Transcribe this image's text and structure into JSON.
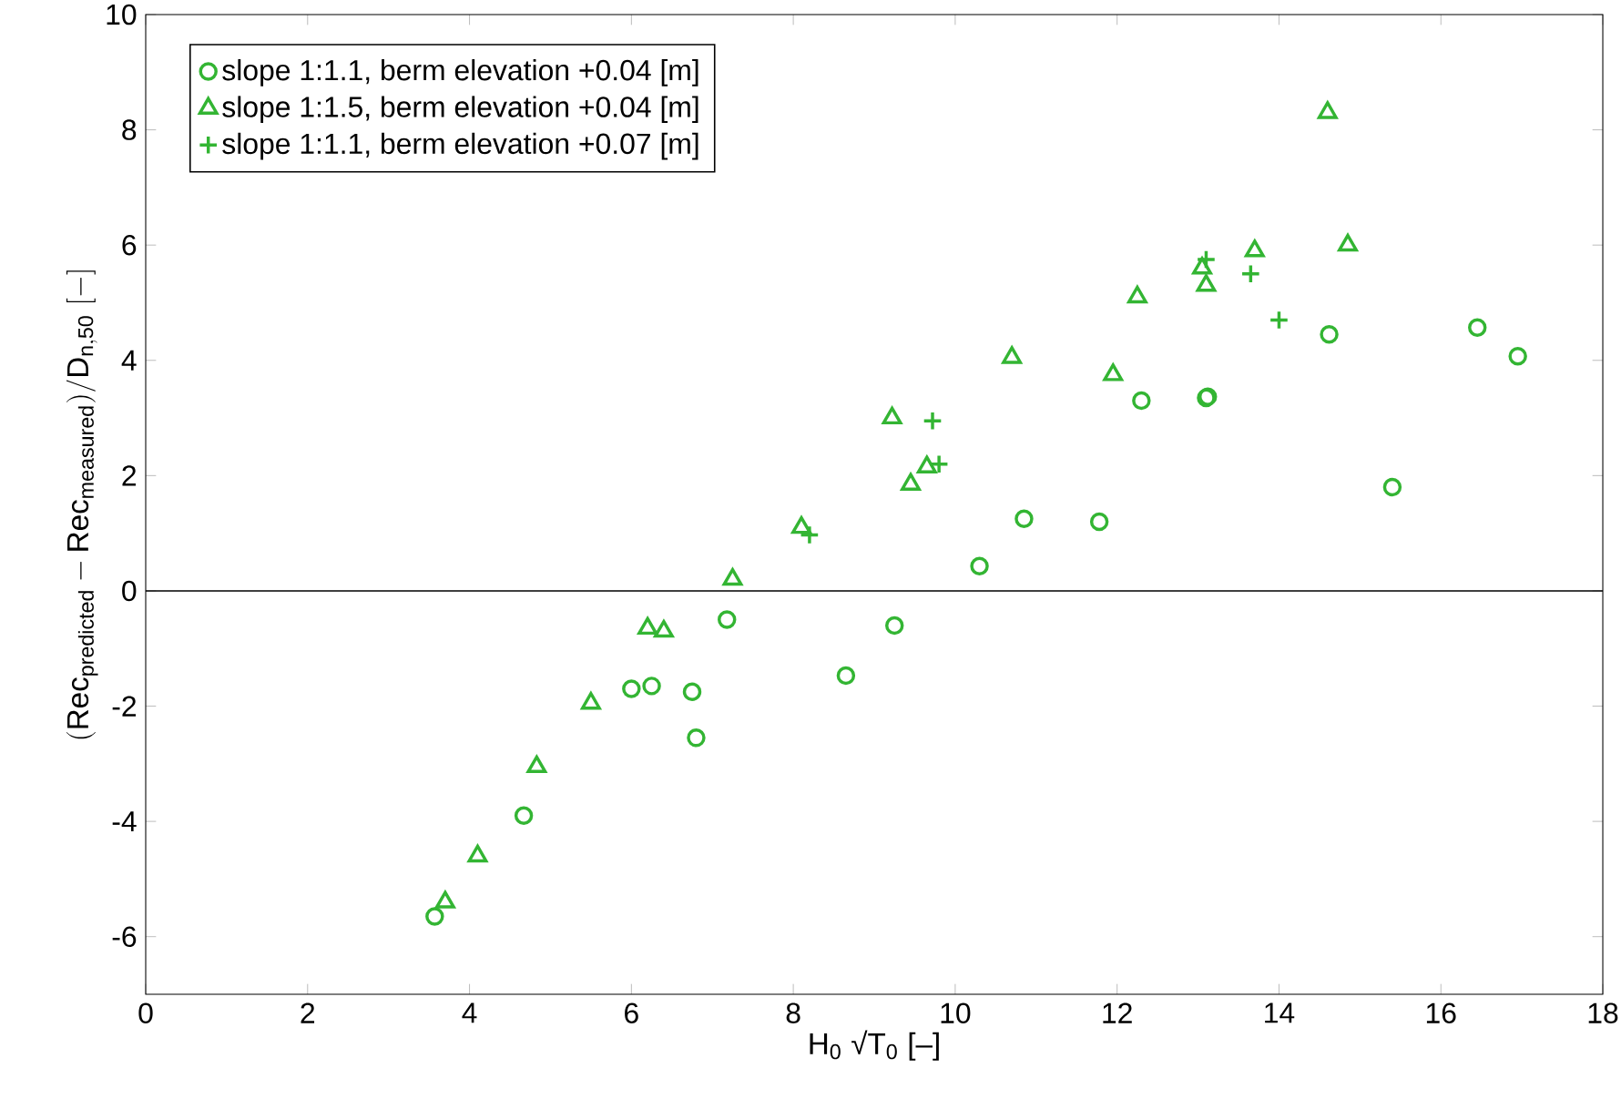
{
  "chart_data": {
    "type": "scatter",
    "xlabel": "H$_{0}$ √T$_{0}$ [–]",
    "ylabel": "(\\mathrm{Rec}_{\\mathrm{predicted}}-\\mathrm{Rec}_{\\mathrm{measured}})/\\mathrm{D}_{\\mathrm{n,50}}\\ [-]",
    "xlim": [
      0,
      18
    ],
    "ylim": [
      -7,
      10
    ],
    "xticks": [
      0,
      2,
      4,
      6,
      8,
      10,
      12,
      14,
      16,
      18
    ],
    "yticks": [
      -6,
      -4,
      -2,
      0,
      2,
      4,
      6,
      8,
      10
    ],
    "legend": "top left",
    "grid": false,
    "ref_lines": [
      {
        "axis": "y",
        "value": 0,
        "color": "#000000"
      }
    ],
    "series": [
      {
        "name": "slope 1:1.1, berm elevation +0.04 [m]",
        "color": "#33b533",
        "marker": "circle",
        "x": [
          3.57,
          4.67,
          6.0,
          6.25,
          6.75,
          6.8,
          7.18,
          8.65,
          9.25,
          10.3,
          10.85,
          11.78,
          12.3,
          13.1,
          13.12,
          14.62,
          15.4,
          16.45,
          16.95
        ],
        "values": [
          -5.65,
          -3.9,
          -1.7,
          -1.65,
          -1.75,
          -2.55,
          -0.5,
          -1.47,
          -0.6,
          0.43,
          1.25,
          1.2,
          3.3,
          3.35,
          3.37,
          4.45,
          1.8,
          4.57,
          4.07
        ]
      },
      {
        "name": "slope 1:1.5, berm elevation +0.04 [m]",
        "color": "#33b533",
        "marker": "triangle",
        "x": [
          3.7,
          4.1,
          4.83,
          5.5,
          6.2,
          6.4,
          7.25,
          8.1,
          9.22,
          9.45,
          9.65,
          10.7,
          11.95,
          12.25,
          13.05,
          13.1,
          13.7,
          14.6,
          14.85
        ],
        "values": [
          -5.4,
          -4.6,
          -3.05,
          -1.95,
          -0.65,
          -0.7,
          0.2,
          1.1,
          3.0,
          1.85,
          2.15,
          4.05,
          3.75,
          5.1,
          5.6,
          5.3,
          5.9,
          8.3,
          6.0
        ]
      },
      {
        "name": "slope 1:1.1, berm elevation +0.07 [m]",
        "color": "#33b533",
        "marker": "cross",
        "x": [
          8.2,
          9.72,
          9.8,
          13.1,
          13.65,
          14.0
        ],
        "values": [
          0.97,
          2.95,
          2.2,
          5.75,
          5.5,
          4.7
        ]
      }
    ]
  }
}
